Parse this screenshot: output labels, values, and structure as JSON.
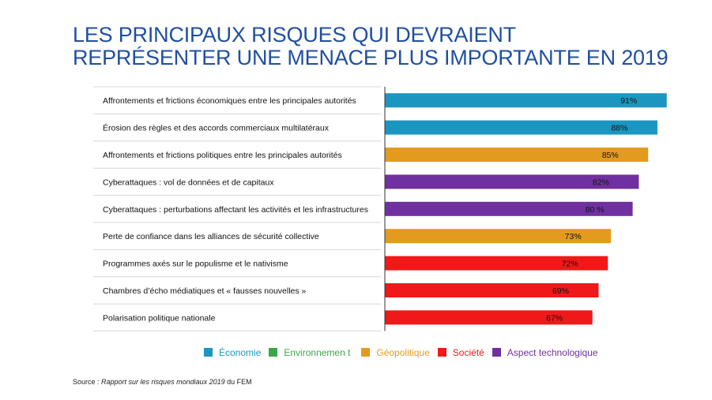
{
  "title": {
    "line1": "LES PRINCIPAUX RISQUES QUI DEVRAIENT",
    "line2": "REPRÉSENTER UNE MENACE PLUS IMPORTANTE EN 2019"
  },
  "legend": [
    {
      "key": "economie",
      "label": "Économie",
      "color": "#1b96c0"
    },
    {
      "key": "environnement",
      "label": "Environnemen t",
      "color": "#3aa848"
    },
    {
      "key": "geopolitique",
      "label": "Géopolitique",
      "color": "#e39b1f"
    },
    {
      "key": "societe",
      "label": "Société",
      "color": "#f01818"
    },
    {
      "key": "technologique",
      "label": "Aspect technologique",
      "color": "#7030a0"
    }
  ],
  "source": {
    "prefix": "Source : ",
    "ref": "Rapport sur les risques mondiaux 2019",
    "suffix": " du FEM"
  },
  "chart_data": {
    "type": "bar",
    "orientation": "horizontal",
    "xlim": [
      0,
      100
    ],
    "grid": false,
    "legend_position": "bottom",
    "categories": [
      "Affrontements et frictions économiques entre les principales autorités",
      "Érosion des règles et des accords commerciaux multilatéraux",
      "Affrontements et frictions politiques entre les principales autorités",
      "Cyberattaques : vol de données et de capitaux",
      "Cyberattaques : perturbations affectant les activités et les infrastructures",
      "Perte de confiance dans les alliances de sécurité collective",
      "Programmes axés sur le populisme et le nativisme",
      "Chambres d’écho médiatiques et « fausses nouvelles »",
      "Polarisation politique nationale"
    ],
    "values": [
      91,
      88,
      85,
      82,
      80,
      73,
      72,
      69,
      67
    ],
    "value_labels": [
      "91%",
      "88%",
      "85%",
      "82%",
      "80 %",
      "73%",
      "72%",
      "69%",
      "67%"
    ],
    "groups": [
      "economie",
      "economie",
      "geopolitique",
      "technologique",
      "technologique",
      "geopolitique",
      "societe",
      "societe",
      "societe"
    ]
  }
}
